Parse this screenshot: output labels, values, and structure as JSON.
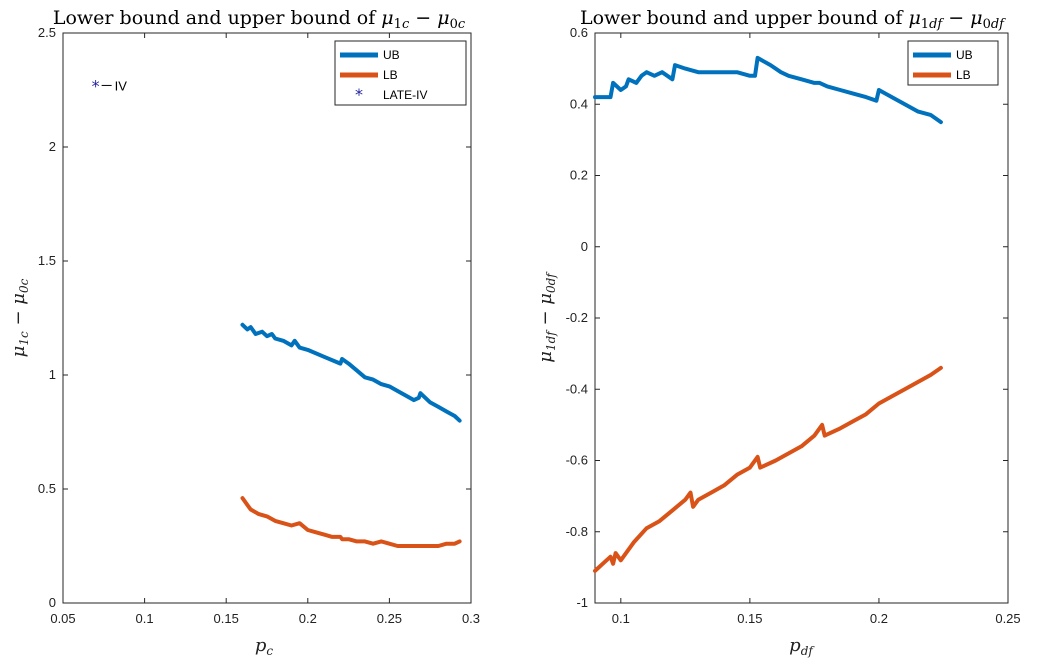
{
  "chart_data": [
    {
      "type": "line",
      "title": "Lower bound and upper bound of μ1c − μ0c",
      "xlabel": "pc",
      "ylabel": "μ1c − μ0c",
      "xlim": [
        0.05,
        0.3
      ],
      "ylim": [
        0,
        2.5
      ],
      "xticks": [
        "0.05",
        "0.1",
        "0.15",
        "0.2",
        "0.25",
        "0.3"
      ],
      "xtick_values": [
        0.05,
        0.1,
        0.15,
        0.2,
        0.25,
        0.3
      ],
      "yticks": [
        "0",
        "0.5",
        "1",
        "1.5",
        "2",
        "2.5"
      ],
      "ytick_values": [
        0,
        0.5,
        1,
        1.5,
        2,
        2.5
      ],
      "grid": false,
      "legend_position": "top-right",
      "legend": [
        "UB",
        "LB",
        "LATE-IV"
      ],
      "series": [
        {
          "name": "UB",
          "color": "#0072BD",
          "x": [
            0.16,
            0.163,
            0.165,
            0.168,
            0.172,
            0.175,
            0.178,
            0.18,
            0.185,
            0.19,
            0.192,
            0.195,
            0.2,
            0.21,
            0.22,
            0.221,
            0.225,
            0.23,
            0.235,
            0.24,
            0.245,
            0.25,
            0.255,
            0.26,
            0.265,
            0.268,
            0.269,
            0.275,
            0.28,
            0.285,
            0.29,
            0.293
          ],
          "y": [
            1.22,
            1.2,
            1.21,
            1.18,
            1.19,
            1.17,
            1.18,
            1.16,
            1.15,
            1.13,
            1.15,
            1.12,
            1.11,
            1.08,
            1.05,
            1.07,
            1.05,
            1.02,
            0.99,
            0.98,
            0.96,
            0.95,
            0.93,
            0.91,
            0.89,
            0.9,
            0.92,
            0.88,
            0.86,
            0.84,
            0.82,
            0.8
          ]
        },
        {
          "name": "LB",
          "color": "#D95319",
          "x": [
            0.16,
            0.163,
            0.165,
            0.17,
            0.175,
            0.18,
            0.185,
            0.19,
            0.195,
            0.2,
            0.205,
            0.21,
            0.215,
            0.22,
            0.221,
            0.225,
            0.23,
            0.235,
            0.24,
            0.245,
            0.25,
            0.255,
            0.26,
            0.265,
            0.27,
            0.275,
            0.28,
            0.285,
            0.29,
            0.293
          ],
          "y": [
            0.46,
            0.43,
            0.41,
            0.39,
            0.38,
            0.36,
            0.35,
            0.34,
            0.35,
            0.32,
            0.31,
            0.3,
            0.29,
            0.29,
            0.28,
            0.28,
            0.27,
            0.27,
            0.26,
            0.27,
            0.26,
            0.25,
            0.25,
            0.25,
            0.25,
            0.25,
            0.25,
            0.26,
            0.26,
            0.27
          ]
        },
        {
          "name": "LATE-IV",
          "color": "#1F1F9E",
          "marker": "*",
          "x": [
            0.07
          ],
          "y": [
            2.27
          ]
        }
      ],
      "annotations": [
        {
          "text": "IV",
          "x": 0.07,
          "y": 2.27
        }
      ]
    },
    {
      "type": "line",
      "title": "Lower bound and upper bound of μ1df − μ0df",
      "xlabel": "pdf",
      "ylabel": "μ1df − μ0df",
      "xlim": [
        0.09,
        0.25
      ],
      "ylim": [
        -1,
        0.6
      ],
      "xticks": [
        "0.1",
        "0.15",
        "0.2",
        "0.25"
      ],
      "xtick_values": [
        0.1,
        0.15,
        0.2,
        0.25
      ],
      "yticks": [
        "-1",
        "-0.8",
        "-0.6",
        "-0.4",
        "-0.2",
        "0",
        "0.2",
        "0.4",
        "0.6"
      ],
      "ytick_values": [
        -1,
        -0.8,
        -0.6,
        -0.4,
        -0.2,
        0,
        0.2,
        0.4,
        0.6
      ],
      "grid": false,
      "legend_position": "top-right",
      "legend": [
        "UB",
        "LB"
      ],
      "series": [
        {
          "name": "UB",
          "color": "#0072BD",
          "x": [
            0.09,
            0.093,
            0.096,
            0.097,
            0.1,
            0.102,
            0.103,
            0.106,
            0.108,
            0.11,
            0.113,
            0.116,
            0.12,
            0.121,
            0.125,
            0.13,
            0.135,
            0.14,
            0.145,
            0.15,
            0.152,
            0.153,
            0.158,
            0.162,
            0.165,
            0.17,
            0.175,
            0.177,
            0.18,
            0.185,
            0.19,
            0.195,
            0.199,
            0.2,
            0.205,
            0.21,
            0.215,
            0.22,
            0.224
          ],
          "y": [
            0.42,
            0.42,
            0.42,
            0.46,
            0.44,
            0.45,
            0.47,
            0.46,
            0.48,
            0.49,
            0.48,
            0.49,
            0.47,
            0.51,
            0.5,
            0.49,
            0.49,
            0.49,
            0.49,
            0.48,
            0.48,
            0.53,
            0.51,
            0.49,
            0.48,
            0.47,
            0.46,
            0.46,
            0.45,
            0.44,
            0.43,
            0.42,
            0.41,
            0.44,
            0.42,
            0.4,
            0.38,
            0.37,
            0.35
          ]
        },
        {
          "name": "LB",
          "color": "#D95319",
          "x": [
            0.09,
            0.093,
            0.096,
            0.097,
            0.098,
            0.1,
            0.105,
            0.11,
            0.115,
            0.12,
            0.125,
            0.127,
            0.128,
            0.13,
            0.135,
            0.14,
            0.145,
            0.15,
            0.153,
            0.154,
            0.16,
            0.165,
            0.17,
            0.175,
            0.178,
            0.179,
            0.185,
            0.19,
            0.195,
            0.2,
            0.205,
            0.21,
            0.215,
            0.22,
            0.224
          ],
          "y": [
            -0.91,
            -0.89,
            -0.87,
            -0.89,
            -0.86,
            -0.88,
            -0.83,
            -0.79,
            -0.77,
            -0.74,
            -0.71,
            -0.69,
            -0.73,
            -0.71,
            -0.69,
            -0.67,
            -0.64,
            -0.62,
            -0.59,
            -0.62,
            -0.6,
            -0.58,
            -0.56,
            -0.53,
            -0.5,
            -0.53,
            -0.51,
            -0.49,
            -0.47,
            -0.44,
            -0.42,
            -0.4,
            -0.38,
            -0.36,
            -0.34
          ]
        }
      ]
    }
  ]
}
